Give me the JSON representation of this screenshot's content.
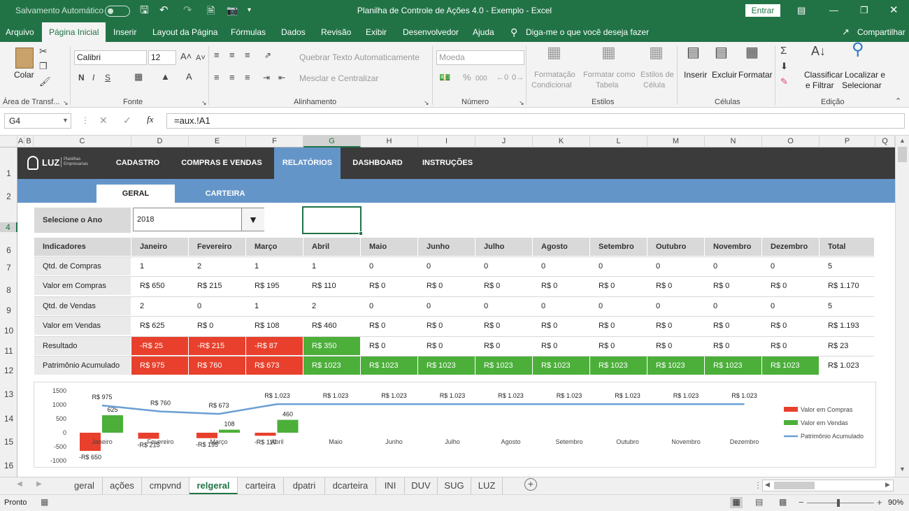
{
  "titlebar": {
    "autosave": "Salvamento Automático",
    "title": "Planilha de Controle de Ações 4.0 - Exemplo  -  Excel",
    "signin": "Entrar"
  },
  "menu": [
    "Arquivo",
    "Página Inicial",
    "Inserir",
    "Layout da Página",
    "Fórmulas",
    "Dados",
    "Revisão",
    "Exibir",
    "Desenvolvedor",
    "Ajuda"
  ],
  "tellme": "Diga-me o que você deseja fazer",
  "share": "Compartilhar",
  "ribbon": {
    "paste": "Colar",
    "clipboard": "Área de Transf...",
    "font_group": "Fonte",
    "align_group": "Alinhamento",
    "number_group": "Número",
    "styles_group": "Estilos",
    "cells_group": "Células",
    "edit_group": "Edição",
    "font": "Calibri",
    "size": "12",
    "wrap": "Quebrar Texto Automaticamente",
    "merge": "Mesclar e Centralizar",
    "numfmt": "Moeda",
    "cond1": "Formatação",
    "cond2": "Condicional",
    "table1": "Formatar como",
    "table2": "Tabela",
    "cellst1": "Estilos de",
    "cellst2": "Célula",
    "insert": "Inserir",
    "delete": "Excluir",
    "format": "Formatar",
    "sort1": "Classificar",
    "sort2": "e Filtrar",
    "find1": "Localizar e",
    "find2": "Selecionar",
    "bold": "N",
    "italic": "I",
    "underline": "S",
    "pct": "%",
    "thousands": "000"
  },
  "formula": {
    "namebox": "G4",
    "content": "=aux.!A1"
  },
  "columns": [
    "A",
    "B",
    "C",
    "D",
    "E",
    "F",
    "G",
    "H",
    "I",
    "J",
    "K",
    "L",
    "M",
    "N",
    "O",
    "P",
    "Q"
  ],
  "rows": [
    "1",
    "2",
    "4",
    "6",
    "7",
    "8",
    "9",
    "10",
    "11",
    "12",
    "13",
    "14",
    "15",
    "16"
  ],
  "nav": {
    "logo": "LUZ",
    "logo_sub1": "Planilhas",
    "logo_sub2": "Empresariais",
    "items": [
      "CADASTRO",
      "COMPRAS E VENDAS",
      "RELATÓRIOS",
      "DASHBOARD",
      "INSTRUÇÕES"
    ],
    "sub": [
      "GERAL",
      "CARTEIRA"
    ]
  },
  "year": {
    "label": "Selecione o Ano",
    "value": "2018"
  },
  "table": {
    "headers": [
      "Indicadores",
      "Janeiro",
      "Fevereiro",
      "Março",
      "Abril",
      "Maio",
      "Junho",
      "Julho",
      "Agosto",
      "Setembro",
      "Outubro",
      "Novembro",
      "Dezembro",
      "Total"
    ],
    "rows": [
      {
        "label": "Qtd. de Compras",
        "values": [
          "1",
          "2",
          "1",
          "1",
          "0",
          "0",
          "0",
          "0",
          "0",
          "0",
          "0",
          "0",
          "5"
        ]
      },
      {
        "label": "Valor em Compras",
        "values": [
          "R$ 650",
          "R$ 215",
          "R$ 195",
          "R$ 110",
          "R$ 0",
          "R$ 0",
          "R$ 0",
          "R$ 0",
          "R$ 0",
          "R$ 0",
          "R$ 0",
          "R$ 0",
          "R$ 1.170"
        ]
      },
      {
        "label": "Qtd. de Vendas",
        "values": [
          "2",
          "0",
          "1",
          "2",
          "0",
          "0",
          "0",
          "0",
          "0",
          "0",
          "0",
          "0",
          "5"
        ]
      },
      {
        "label": "Valor em Vendas",
        "values": [
          "R$ 625",
          "R$ 0",
          "R$ 108",
          "R$ 460",
          "R$ 0",
          "R$ 0",
          "R$ 0",
          "R$ 0",
          "R$ 0",
          "R$ 0",
          "R$ 0",
          "R$ 0",
          "R$ 1.193"
        ]
      },
      {
        "label": "Resultado",
        "values": [
          "-R$ 25",
          "-R$ 215",
          "-R$ 87",
          "R$ 350",
          "R$ 0",
          "R$ 0",
          "R$ 0",
          "R$ 0",
          "R$ 0",
          "R$ 0",
          "R$ 0",
          "R$ 0",
          "R$ 23"
        ],
        "colors": [
          "red",
          "red",
          "red",
          "green",
          "",
          "",
          "",
          "",
          "",
          "",
          "",
          "",
          ""
        ]
      },
      {
        "label": "Patrimônio Acumulado",
        "values": [
          "R$ 975",
          "R$ 760",
          "R$ 673",
          "R$ 1023",
          "R$ 1023",
          "R$ 1023",
          "R$ 1023",
          "R$ 1023",
          "R$ 1023",
          "R$ 1023",
          "R$ 1023",
          "R$ 1023",
          "R$ 1.023"
        ],
        "colors": [
          "red",
          "red",
          "red",
          "green",
          "green",
          "green",
          "green",
          "green",
          "green",
          "green",
          "green",
          "green",
          ""
        ]
      }
    ]
  },
  "chart_data": {
    "type": "bar",
    "categories": [
      "Janeiro",
      "Fevereiro",
      "Março",
      "Abril",
      "Maio",
      "Junho",
      "Julho",
      "Agosto",
      "Setembro",
      "Outubro",
      "Novembro",
      "Dezembro"
    ],
    "ylim": [
      -1000,
      1500
    ],
    "yticks": [
      "1500",
      "1000",
      "500",
      "0",
      "-500",
      "-1000"
    ],
    "legend_position": "right",
    "series": [
      {
        "name": "Valor em Compras",
        "type": "bar",
        "color": "#e8402c",
        "values": [
          -650,
          -215,
          -195,
          -110,
          0,
          0,
          0,
          0,
          0,
          0,
          0,
          0
        ],
        "labels": [
          "-R$ 650",
          "-R$ 215",
          "-R$ 195",
          "-R$ 110",
          "",
          "",
          "",
          "",
          "",
          "",
          "",
          ""
        ]
      },
      {
        "name": "Valor em Vendas",
        "type": "bar",
        "color": "#4caf3a",
        "values": [
          625,
          0,
          108,
          460,
          0,
          0,
          0,
          0,
          0,
          0,
          0,
          0
        ],
        "labels": [
          "625",
          "",
          "108",
          "460",
          "",
          "",
          "",
          "",
          "",
          "",
          "",
          ""
        ]
      },
      {
        "name": "Patrimônio Acumulado",
        "type": "line",
        "color": "#6a9fd4",
        "values": [
          975,
          760,
          673,
          1023,
          1023,
          1023,
          1023,
          1023,
          1023,
          1023,
          1023,
          1023
        ],
        "labels": [
          "R$ 975",
          "R$ 760",
          "R$ 673",
          "R$ 1.023",
          "R$ 1.023",
          "R$ 1.023",
          "R$ 1.023",
          "R$ 1.023",
          "R$ 1.023",
          "R$ 1.023",
          "R$ 1.023",
          "R$ 1.023"
        ]
      }
    ]
  },
  "sheets": [
    "geral",
    "ações",
    "cmpvnd",
    "relgeral",
    "carteira",
    "dpatri",
    "dcarteira",
    "INI",
    "DUV",
    "SUG",
    "LUZ"
  ],
  "active_sheet": "relgeral",
  "status": {
    "ready": "Pronto",
    "zoom": "90%"
  }
}
